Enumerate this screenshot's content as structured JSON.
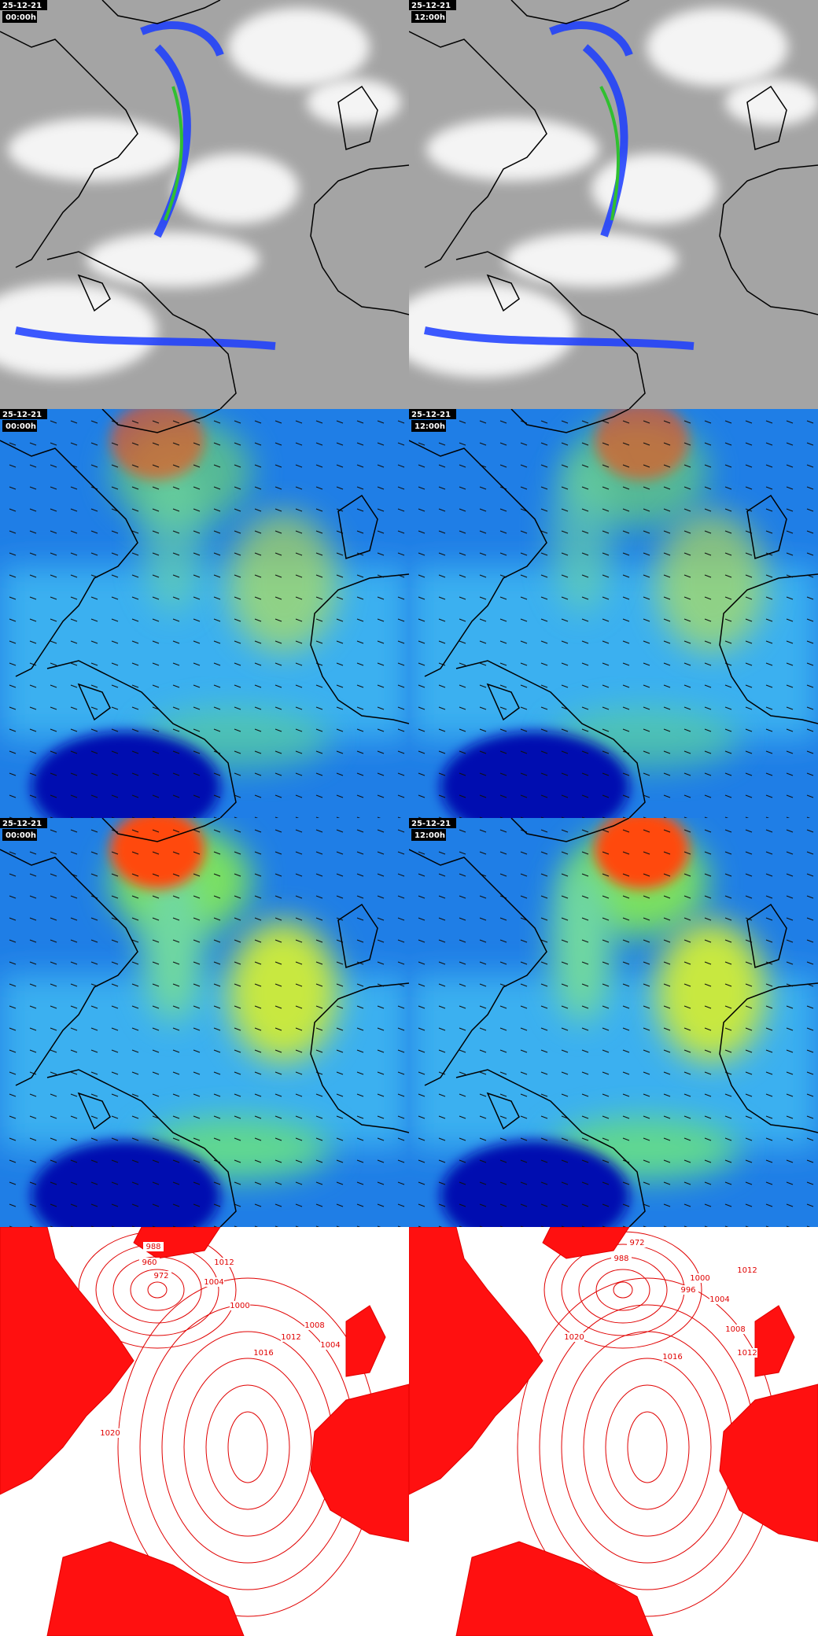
{
  "panels": [
    {
      "date": "25-12-21",
      "time": "00:00h"
    },
    {
      "date": "25-12-21",
      "time": "12:00h"
    },
    {
      "date": "25-12-21",
      "time": "00:00h"
    },
    {
      "date": "25-12-21",
      "time": "12:00h"
    },
    {
      "date": "25-12-21",
      "time": "00:00h"
    },
    {
      "date": "25-12-21",
      "time": "12:00h"
    }
  ],
  "pressure_panels": [
    {
      "contour_labels": [
        "988",
        "960",
        "972",
        "1012",
        "1004",
        "1000",
        "1008",
        "1004",
        "1016",
        "1012",
        "1020"
      ]
    },
    {
      "contour_labels": [
        "972",
        "988",
        "1012",
        "996",
        "1000",
        "1004",
        "1016",
        "1008",
        "1012",
        "1020"
      ]
    }
  ]
}
